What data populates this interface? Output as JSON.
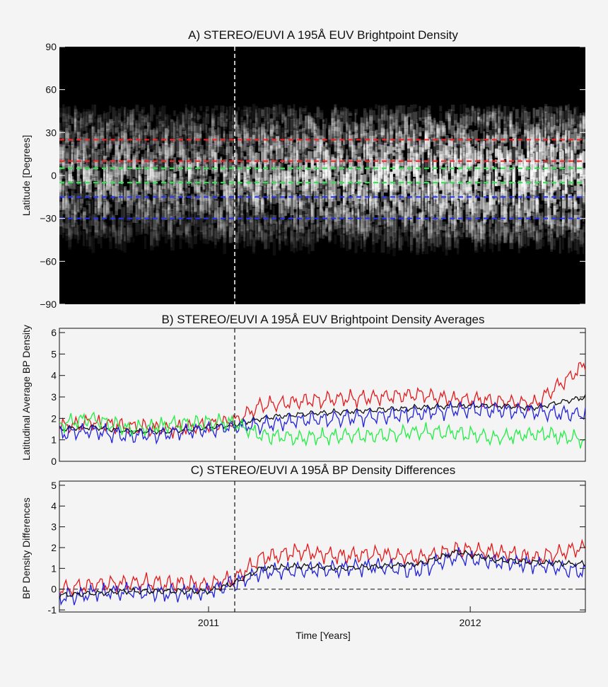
{
  "chart_data": [
    {
      "type": "heatmap",
      "title": "A) STEREO/EUVI A 195Å EUV Brightpoint Density",
      "xlabel": "",
      "ylabel": "Latitude [Degrees]",
      "xlim": [
        2010.43,
        2012.44
      ],
      "ylim": [
        -90,
        90
      ],
      "y_ticks": [
        "90",
        "60",
        "30",
        "0",
        "−30",
        "−60",
        "−90"
      ],
      "y_tick_values": [
        90,
        60,
        30,
        0,
        -30,
        -60,
        -90
      ],
      "x_tick_values": [
        2011,
        2012
      ],
      "grid": false,
      "colormap": "grayscale",
      "vertical_marker_x": 2011.1,
      "reference_lines": [
        {
          "latitude": 25,
          "color": "#ff2020"
        },
        {
          "latitude": 10,
          "color": "#ff2020"
        },
        {
          "latitude": 5,
          "color": "#22ee44"
        },
        {
          "latitude": -5,
          "color": "#22ee44"
        },
        {
          "latitude": -15,
          "color": "#2233ff"
        },
        {
          "latitude": -30,
          "color": "#2233ff"
        }
      ],
      "density_band": {
        "center": 0,
        "extent": [
          -45,
          50
        ]
      }
    },
    {
      "type": "line",
      "title": "B) STEREO/EUVI A 195Å EUV Brightpoint Density Averages",
      "xlabel": "",
      "ylabel": "Latitudinal Average BP Density",
      "xlim": [
        2010.43,
        2012.44
      ],
      "ylim": [
        0,
        6.2
      ],
      "y_ticks": [
        "0",
        "1",
        "2",
        "3",
        "4",
        "5",
        "6"
      ],
      "y_tick_values": [
        0,
        1,
        2,
        3,
        4,
        5,
        6
      ],
      "x_tick_values": [
        2011,
        2012
      ],
      "grid": false,
      "vertical_marker_x": 2011.1,
      "x": [
        2010.43,
        2010.55,
        2010.7,
        2010.85,
        2011.0,
        2011.1,
        2011.2,
        2011.35,
        2011.5,
        2011.65,
        2011.8,
        2011.95,
        2012.1,
        2012.25,
        2012.44
      ],
      "series": [
        {
          "color": "#e31a1c",
          "values": [
            1.6,
            1.8,
            1.6,
            1.5,
            1.7,
            1.9,
            2.6,
            2.8,
            2.9,
            3.0,
            3.1,
            2.9,
            2.8,
            2.7,
            4.5
          ]
        },
        {
          "color": "#111111",
          "values": [
            1.5,
            1.6,
            1.4,
            1.4,
            1.6,
            1.7,
            2.0,
            2.2,
            2.3,
            2.4,
            2.5,
            2.6,
            2.6,
            2.5,
            3.0
          ]
        },
        {
          "color": "#2222dd",
          "values": [
            1.3,
            1.4,
            1.2,
            1.3,
            1.5,
            1.6,
            1.7,
            1.9,
            2.0,
            2.1,
            2.2,
            2.4,
            2.4,
            2.3,
            2.2
          ]
        },
        {
          "color": "#22ee44",
          "values": [
            1.7,
            2.0,
            1.5,
            1.7,
            1.8,
            1.8,
            1.2,
            1.1,
            1.2,
            1.2,
            1.4,
            1.3,
            1.1,
            1.3,
            1.0
          ]
        }
      ]
    },
    {
      "type": "line",
      "title": "C) STEREO/EUVI A 195Å BP Density Differences",
      "xlabel": "Time [Years]",
      "ylabel": "BP Density Differences",
      "xlim": [
        2010.43,
        2012.44
      ],
      "ylim": [
        -1.1,
        5.2
      ],
      "y_ticks": [
        "-1",
        "0",
        "1",
        "2",
        "3",
        "4",
        "5"
      ],
      "y_tick_values": [
        -1,
        0,
        1,
        2,
        3,
        4,
        5
      ],
      "x_ticks": [
        "2011",
        "2012"
      ],
      "x_tick_values": [
        2011,
        2012
      ],
      "grid": false,
      "vertical_marker_x": 2011.1,
      "zero_line": 0,
      "x": [
        2010.43,
        2010.55,
        2010.7,
        2010.85,
        2011.0,
        2011.1,
        2011.2,
        2011.35,
        2011.5,
        2011.65,
        2011.8,
        2011.95,
        2012.1,
        2012.25,
        2012.44
      ],
      "series": [
        {
          "color": "#e31a1c",
          "values": [
            0.0,
            0.2,
            0.3,
            0.3,
            0.2,
            0.5,
            1.5,
            1.8,
            1.6,
            1.7,
            1.5,
            1.9,
            1.8,
            1.5,
            2.0
          ]
        },
        {
          "color": "#2222dd",
          "values": [
            -0.4,
            -0.2,
            -0.1,
            -0.2,
            -0.1,
            0.3,
            0.8,
            0.9,
            1.0,
            1.1,
            0.9,
            1.6,
            1.3,
            1.2,
            0.8
          ]
        },
        {
          "color": "#111111",
          "values": [
            -0.3,
            -0.2,
            -0.1,
            -0.1,
            -0.1,
            0.3,
            1.0,
            1.1,
            1.0,
            1.1,
            1.2,
            1.8,
            1.4,
            1.3,
            1.2
          ]
        }
      ]
    }
  ]
}
